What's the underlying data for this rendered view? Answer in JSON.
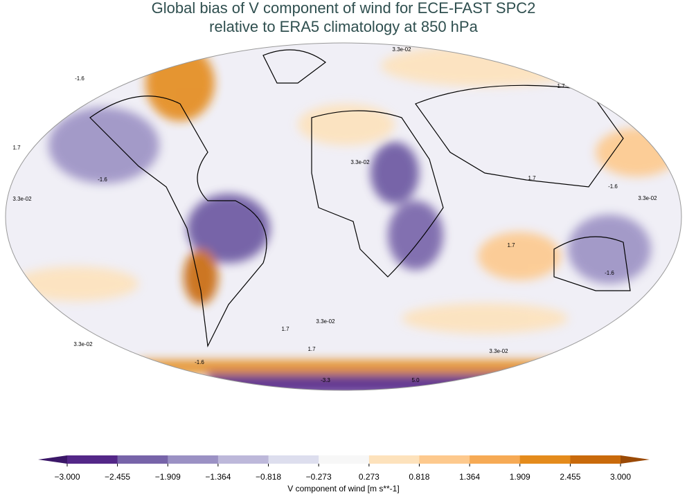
{
  "title": [
    "Global bias of V component of wind for ECE-FAST SPC2",
    "relative to ERA5 climatology at 850 hPa"
  ],
  "colorbar": {
    "label": "V component of wind [m s**-1]",
    "ticks": [
      {
        "value": -3.0,
        "label": "−3.000"
      },
      {
        "value": -2.455,
        "label": "−2.455"
      },
      {
        "value": -1.909,
        "label": "−1.909"
      },
      {
        "value": -1.364,
        "label": "−1.364"
      },
      {
        "value": -0.818,
        "label": "−0.818"
      },
      {
        "value": -0.273,
        "label": "−0.273"
      },
      0.273,
      0.818,
      1.364,
      1.909,
      2.455,
      {
        "value": 3.0,
        "label": "3.000"
      }
    ],
    "lim": [
      -3.0,
      3.0
    ],
    "extend_colors": [
      "#3b1768",
      "#9a4a06"
    ],
    "colors": [
      "#542788",
      "#7764a9",
      "#9b91c4",
      "#bdb8da",
      "#dddeee",
      "#f7f7f7",
      "#fde2bc",
      "#fdc98d",
      "#f6aa55",
      "#e48b1c",
      "#c96a0b"
    ]
  },
  "contour_labels": [
    "3.3e-02",
    "-1.6",
    "1.7",
    "3.3e-02",
    "-1.6",
    "1.7",
    "3.3e-02",
    "1.7",
    "-1.6",
    "3.3e-02",
    "1.7",
    "-1.6",
    "3.3e-02",
    "1.7",
    "3.3e-02",
    "-1.6",
    "1.7",
    "5.0",
    "-3.3",
    "3.3e-02"
  ]
}
